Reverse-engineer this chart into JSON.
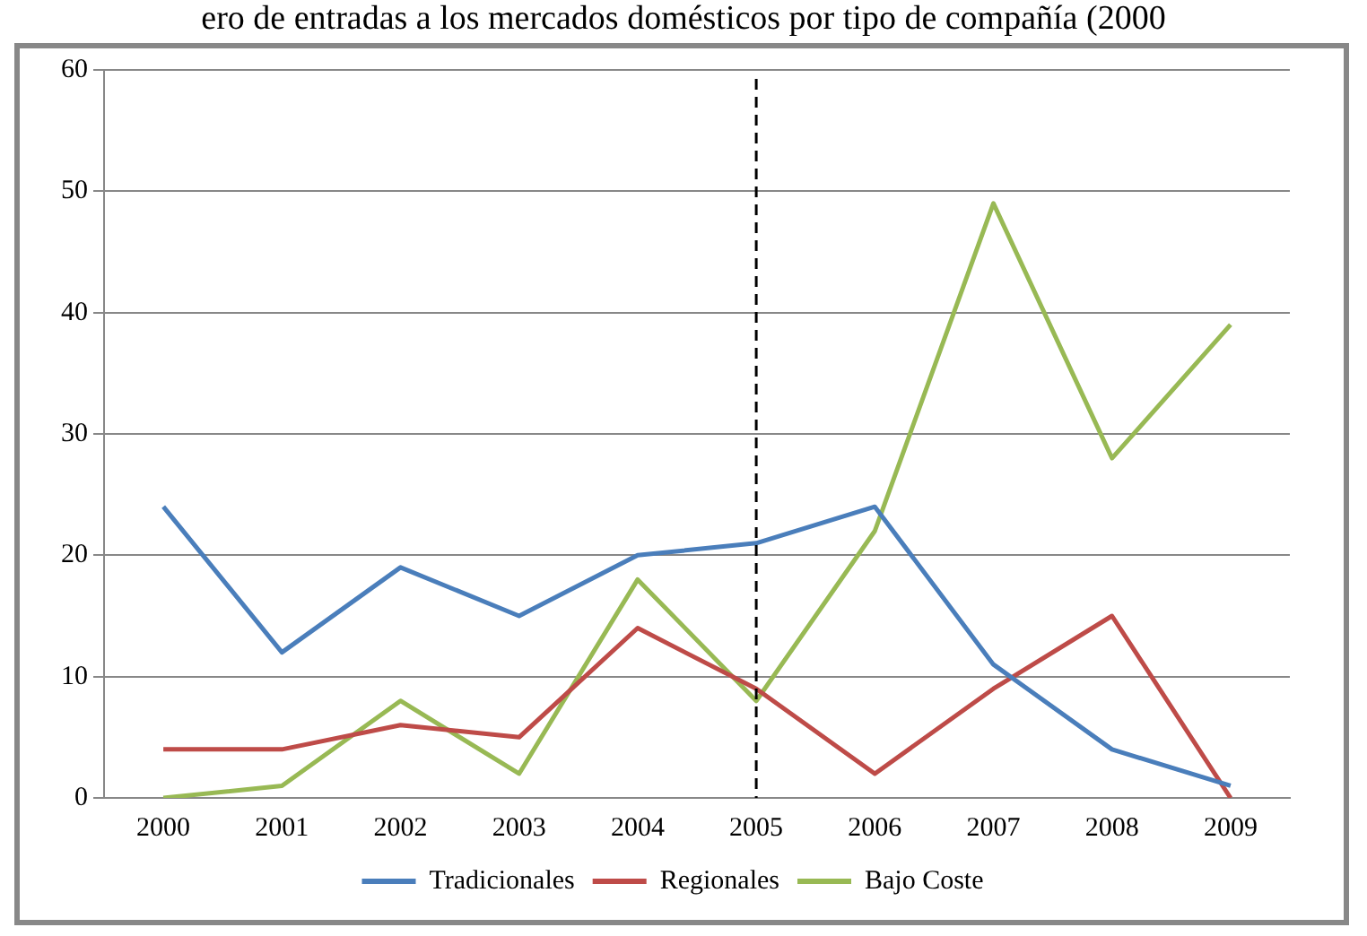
{
  "chart_data": {
    "type": "line",
    "title": "ero de entradas a los mercados domésticos por tipo de compañía (2000",
    "categories": [
      "2000",
      "2001",
      "2002",
      "2003",
      "2004",
      "2005",
      "2006",
      "2007",
      "2008",
      "2009"
    ],
    "series": [
      {
        "name": "Tradicionales",
        "color": "#4a7ebb",
        "values": [
          24,
          12,
          19,
          15,
          20,
          21,
          24,
          11,
          4,
          1
        ]
      },
      {
        "name": "Regionales",
        "color": "#be4b48",
        "values": [
          4,
          4,
          6,
          5,
          14,
          9,
          2,
          9,
          15,
          0
        ]
      },
      {
        "name": "Bajo Coste",
        "color": "#98b954",
        "values": [
          0,
          1,
          8,
          2,
          18,
          8,
          22,
          49,
          28,
          39
        ]
      }
    ],
    "ylim": [
      0,
      60
    ],
    "yticks": [
      0,
      10,
      20,
      30,
      40,
      50,
      60
    ],
    "grid": "y",
    "legend": "bottom",
    "marker": "none",
    "line_style": "solid",
    "ref_lines": [
      {
        "axis": "x",
        "value": "2005",
        "color": "#000000",
        "line_style": "dashed"
      }
    ]
  }
}
